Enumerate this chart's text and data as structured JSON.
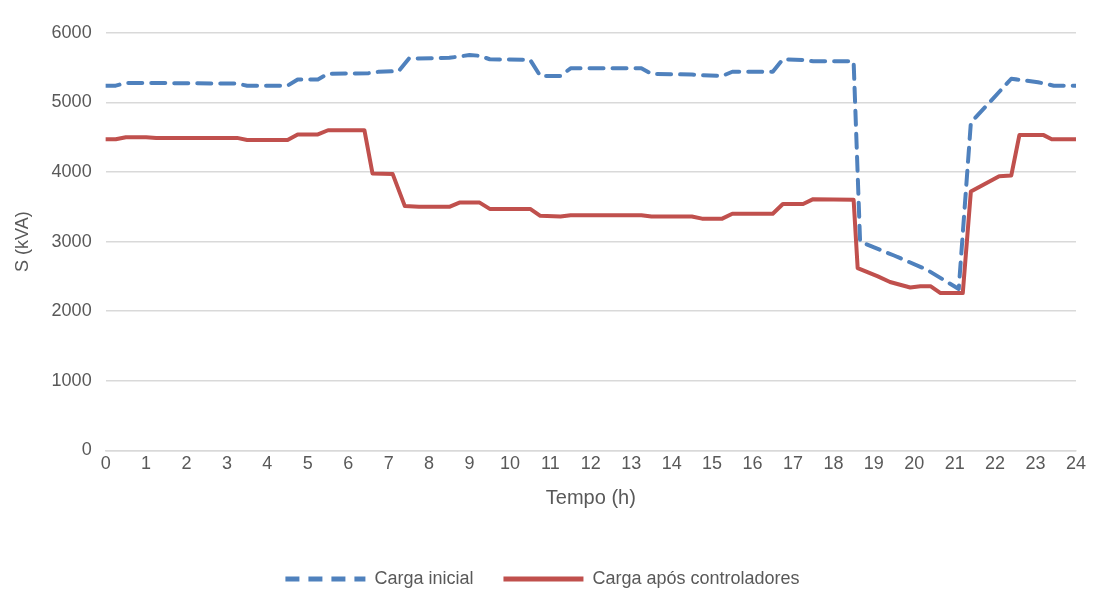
{
  "chart_data": {
    "type": "line",
    "xlabel": "Tempo (h)",
    "ylabel": "S (kVA)",
    "xlim": [
      0,
      24
    ],
    "xticks": [
      0,
      1,
      2,
      3,
      4,
      5,
      6,
      7,
      8,
      9,
      10,
      11,
      12,
      13,
      14,
      15,
      16,
      17,
      18,
      19,
      20,
      21,
      22,
      23,
      24
    ],
    "ylim": [
      0,
      6000
    ],
    "yticks": [
      0,
      1000,
      2000,
      3000,
      4000,
      5000,
      6000
    ],
    "grid": "y",
    "legend": "bottom",
    "marker": "none",
    "series": [
      {
        "name": "Carga inicial",
        "color": "#4f81bd",
        "line_style": "dashed",
        "x": [
          0,
          0.25,
          0.5,
          1,
          3.25,
          3.5,
          4.5,
          4.75,
          5.25,
          5.5,
          6.5,
          6.75,
          7.25,
          7.5,
          8.5,
          9,
          9.25,
          9.5,
          10.5,
          10.75,
          11.25,
          11.5,
          13.25,
          13.5,
          14.5,
          14.75,
          15.25,
          15.5,
          16.5,
          16.75,
          17.25,
          17.5,
          18.5,
          18.66,
          19.5,
          20.3,
          21.1,
          21.4,
          22.4,
          23.06,
          23.45,
          24
        ],
        "values": [
          5240,
          5240,
          5280,
          5280,
          5270,
          5240,
          5240,
          5330,
          5330,
          5410,
          5420,
          5440,
          5450,
          5630,
          5640,
          5680,
          5670,
          5620,
          5610,
          5380,
          5380,
          5490,
          5490,
          5410,
          5400,
          5390,
          5380,
          5440,
          5440,
          5620,
          5610,
          5590,
          5590,
          3000,
          2800,
          2600,
          2320,
          4710,
          5340,
          5290,
          5240,
          5240
        ]
      },
      {
        "name": "Carga após controladores",
        "color": "#c0504d",
        "line_style": "solid",
        "x": [
          0,
          0.25,
          0.5,
          1,
          1.25,
          3.25,
          3.5,
          4.5,
          4.75,
          5.25,
          5.5,
          6.4,
          6.6,
          7.1,
          7.4,
          7.75,
          8.5,
          8.75,
          9.25,
          9.5,
          10.5,
          10.75,
          11.25,
          11.5,
          13.25,
          13.5,
          14.5,
          14.75,
          15.25,
          15.5,
          16.5,
          16.75,
          17.25,
          17.5,
          18.5,
          18.6,
          19.1,
          19.4,
          19.9,
          20.15,
          20.4,
          20.65,
          21.2,
          21.4,
          22.1,
          22.4,
          22.6,
          23.2,
          23.4,
          24
        ],
        "values": [
          4470,
          4470,
          4500,
          4500,
          4490,
          4490,
          4460,
          4460,
          4540,
          4540,
          4600,
          4600,
          3980,
          3970,
          3510,
          3500,
          3500,
          3560,
          3560,
          3470,
          3470,
          3370,
          3360,
          3380,
          3380,
          3360,
          3360,
          3330,
          3330,
          3400,
          3400,
          3540,
          3540,
          3610,
          3600,
          2620,
          2500,
          2420,
          2340,
          2360,
          2360,
          2260,
          2260,
          3720,
          3940,
          3950,
          4530,
          4530,
          4470,
          4470
        ]
      }
    ]
  }
}
